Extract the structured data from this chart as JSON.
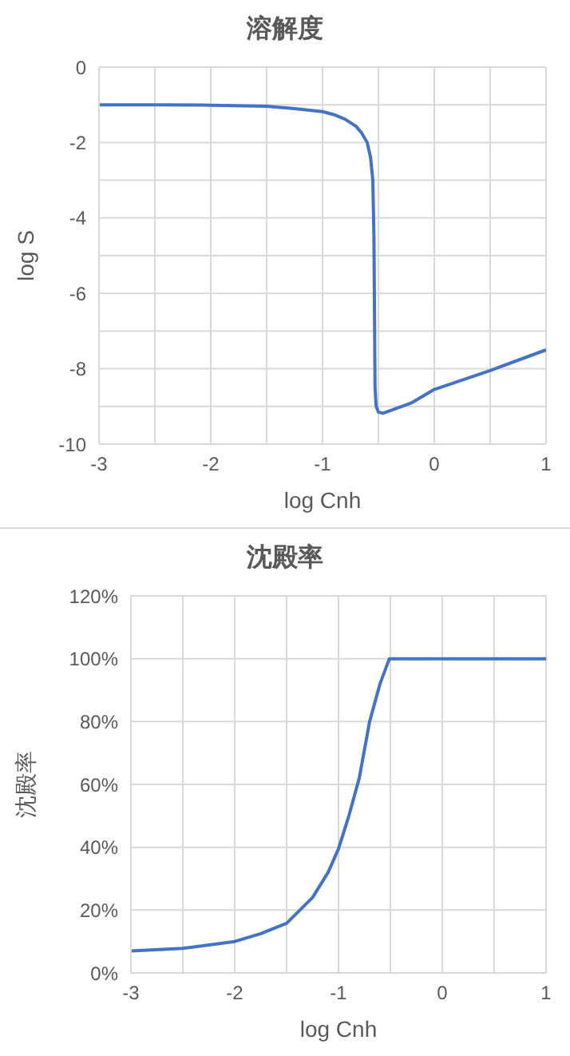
{
  "chart_data": [
    {
      "type": "line",
      "title": "溶解度",
      "xlabel": "log Cnh",
      "ylabel": "log S",
      "grid": true,
      "marker": "none",
      "line_style": "solid",
      "xlim": [
        -3,
        1
      ],
      "xticks": [
        -3,
        {
          "value": -2.5,
          "label": null
        },
        -2,
        {
          "value": -1.5,
          "label": null
        },
        -1,
        {
          "value": -0.5,
          "label": null
        },
        0,
        {
          "value": 0.5,
          "label": null
        },
        1
      ],
      "ylim": [
        -10,
        0
      ],
      "yticks": [
        -10,
        {
          "value": -9,
          "label": null
        },
        -8,
        {
          "value": -7,
          "label": null
        },
        -6,
        {
          "value": -5,
          "label": null
        },
        -4,
        {
          "value": -3,
          "label": null
        },
        -2,
        {
          "value": -1,
          "label": null
        },
        0
      ],
      "series": [
        {
          "color": "#4472c4",
          "x": [
            -3,
            -2.5,
            -2,
            -1.5,
            -1.25,
            -1,
            -0.9,
            -0.8,
            -0.7,
            -0.65,
            -0.6,
            -0.57,
            -0.55,
            -0.54,
            -0.535,
            -0.53,
            -0.52,
            -0.5,
            -0.46,
            -0.4,
            -0.2,
            0,
            0.5,
            1
          ],
          "values": [
            -1.0,
            -1.0,
            -1.01,
            -1.04,
            -1.1,
            -1.18,
            -1.26,
            -1.38,
            -1.57,
            -1.75,
            -2.0,
            -2.4,
            -3.0,
            -4.5,
            -6.5,
            -8.5,
            -9.0,
            -9.15,
            -9.18,
            -9.12,
            -8.9,
            -8.55,
            -8.05,
            -7.5
          ]
        }
      ]
    },
    {
      "type": "line",
      "title": "沈殿率",
      "xlabel": "log Cnh",
      "ylabel": "沈殿率",
      "grid": true,
      "marker": "none",
      "line_style": "solid",
      "xlim": [
        -3,
        1
      ],
      "xticks": [
        -3,
        {
          "value": -2.5,
          "label": null
        },
        -2,
        {
          "value": -1.5,
          "label": null
        },
        -1,
        {
          "value": -0.5,
          "label": null
        },
        0,
        {
          "value": 0.5,
          "label": null
        },
        1
      ],
      "ylim": [
        0,
        120
      ],
      "yticks": [
        {
          "value": 0,
          "label": "0%"
        },
        {
          "value": 20,
          "label": "20%"
        },
        {
          "value": 40,
          "label": "40%"
        },
        {
          "value": 60,
          "label": "60%"
        },
        {
          "value": 80,
          "label": "80%"
        },
        {
          "value": 100,
          "label": "100%"
        },
        {
          "value": 120,
          "label": "120%"
        }
      ],
      "series": [
        {
          "color": "#4472c4",
          "x": [
            -3,
            -2.5,
            -2,
            -1.75,
            -1.5,
            -1.25,
            -1.1,
            -1,
            -0.9,
            -0.8,
            -0.7,
            -0.6,
            -0.51,
            0,
            0.5,
            1
          ],
          "values": [
            7,
            7.8,
            10,
            12.5,
            15.8,
            24,
            32,
            39.5,
            50,
            62,
            80,
            92,
            100,
            100,
            100,
            100
          ]
        }
      ]
    }
  ]
}
